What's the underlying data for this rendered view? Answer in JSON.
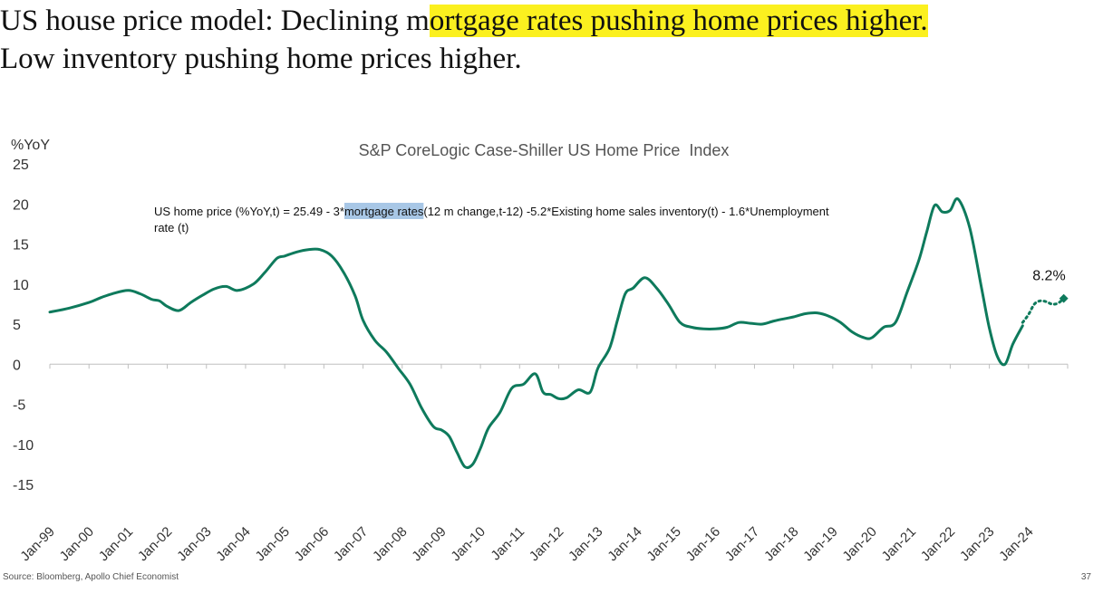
{
  "slide": {
    "title_line1_prefix": "US house price model: Declining m",
    "title_line1_highlight": "ortgage rates pushing home prices higher.",
    "title_line2": "Low inventory pushing home prices higher.",
    "source": "Source: Bloomberg, Apollo Chief Economist",
    "page_number": "37"
  },
  "colors": {
    "line": "#0e7a5c",
    "highlight_yellow": "#fbf01f",
    "highlight_blue": "#a8c7e6"
  },
  "chart_data": {
    "type": "line",
    "title": "S&P CoreLogic Case-Shiller US Home Price  Index",
    "ylabel": "%YoY",
    "ylim": [
      -15,
      25
    ],
    "yticks": [
      25,
      20,
      15,
      10,
      5,
      0,
      -5,
      -10,
      -15
    ],
    "xlim": [
      1999.0,
      2025.0
    ],
    "categories": [
      "Jan-99",
      "Jan-00",
      "Jan-01",
      "Jan-02",
      "Jan-03",
      "Jan-04",
      "Jan-05",
      "Jan-06",
      "Jan-07",
      "Jan-08",
      "Jan-09",
      "Jan-10",
      "Jan-11",
      "Jan-12",
      "Jan-13",
      "Jan-14",
      "Jan-15",
      "Jan-16",
      "Jan-17",
      "Jan-18",
      "Jan-19",
      "Jan-20",
      "Jan-21",
      "Jan-22",
      "Jan-23",
      "Jan-24"
    ],
    "annotation": {
      "prefix": "US home price (%YoY,t) = 25.49 - 3*",
      "highlight": "mortgage rates",
      "suffix": "(12 m change,t-12) -5.2*Existing home sales inventory(t) - 1.6*Unemployment",
      "line2": "rate (t)"
    },
    "end_label": "8.2%",
    "series": [
      {
        "style": "solid",
        "x": [
          1999.0,
          1999.5,
          2000.0,
          2000.3,
          2000.6,
          2001.0,
          2001.3,
          2001.6,
          2001.8,
          2002.0,
          2002.3,
          2002.6,
          2002.9,
          2003.2,
          2003.5,
          2003.8,
          2004.2,
          2004.5,
          2004.8,
          2005.0,
          2005.3,
          2005.6,
          2005.9,
          2006.2,
          2006.5,
          2006.8,
          2007.0,
          2007.3,
          2007.6,
          2007.9,
          2008.2,
          2008.5,
          2008.8,
          2009.0,
          2009.2,
          2009.4,
          2009.6,
          2009.8,
          2010.0,
          2010.2,
          2010.5,
          2010.8,
          2011.1,
          2011.4,
          2011.6,
          2011.8,
          2012.0,
          2012.2,
          2012.5,
          2012.8,
          2013.0,
          2013.3,
          2013.5,
          2013.7,
          2013.9,
          2014.2,
          2014.5,
          2014.8,
          2015.1,
          2015.4,
          2015.7,
          2016.0,
          2016.3,
          2016.6,
          2016.9,
          2017.2,
          2017.5,
          2017.8,
          2018.0,
          2018.3,
          2018.6,
          2018.9,
          2019.2,
          2019.5,
          2019.8,
          2020.0,
          2020.3,
          2020.6,
          2020.9,
          2021.2,
          2021.4,
          2021.6,
          2021.8,
          2022.0,
          2022.2,
          2022.5,
          2022.8,
          2023.0,
          2023.2,
          2023.4,
          2023.6,
          2023.85
        ],
        "values": [
          6.5,
          7.0,
          7.7,
          8.3,
          8.8,
          9.2,
          8.8,
          8.1,
          7.9,
          7.2,
          6.7,
          7.7,
          8.6,
          9.4,
          9.7,
          9.2,
          10.0,
          11.5,
          13.2,
          13.5,
          14.0,
          14.3,
          14.3,
          13.5,
          11.5,
          8.5,
          5.5,
          3.0,
          1.5,
          -0.5,
          -2.5,
          -5.5,
          -7.8,
          -8.2,
          -9.0,
          -11.0,
          -12.8,
          -12.5,
          -10.5,
          -8.0,
          -6.0,
          -3.0,
          -2.5,
          -1.2,
          -3.5,
          -3.8,
          -4.3,
          -4.2,
          -3.2,
          -3.5,
          -0.5,
          2.0,
          5.5,
          8.8,
          9.5,
          10.8,
          9.5,
          7.5,
          5.2,
          4.6,
          4.4,
          4.4,
          4.6,
          5.2,
          5.1,
          5.0,
          5.4,
          5.7,
          5.9,
          6.3,
          6.4,
          6.0,
          5.2,
          4.0,
          3.3,
          3.3,
          4.6,
          5.2,
          9.0,
          13.0,
          16.5,
          19.8,
          19.0,
          19.2,
          20.6,
          17.0,
          9.5,
          4.5,
          1.0,
          0.0,
          2.5,
          4.8
        ]
      },
      {
        "style": "dotted",
        "x": [
          2023.85,
          2024.0,
          2024.15,
          2024.3,
          2024.45,
          2024.6,
          2024.75,
          2024.9
        ],
        "values": [
          5.2,
          6.2,
          7.5,
          7.9,
          7.8,
          7.5,
          7.6,
          8.2
        ]
      }
    ]
  }
}
